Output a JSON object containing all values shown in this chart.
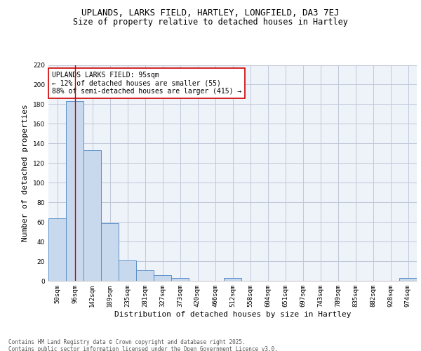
{
  "title1": "UPLANDS, LARKS FIELD, HARTLEY, LONGFIELD, DA3 7EJ",
  "title2": "Size of property relative to detached houses in Hartley",
  "xlabel": "Distribution of detached houses by size in Hartley",
  "ylabel": "Number of detached properties",
  "categories": [
    "50sqm",
    "96sqm",
    "142sqm",
    "189sqm",
    "235sqm",
    "281sqm",
    "327sqm",
    "373sqm",
    "420sqm",
    "466sqm",
    "512sqm",
    "558sqm",
    "604sqm",
    "651sqm",
    "697sqm",
    "743sqm",
    "789sqm",
    "835sqm",
    "882sqm",
    "928sqm",
    "974sqm"
  ],
  "values": [
    64,
    183,
    133,
    59,
    21,
    11,
    6,
    3,
    0,
    0,
    3,
    0,
    0,
    0,
    0,
    0,
    0,
    0,
    0,
    0,
    3
  ],
  "bar_color": "#c9d9ed",
  "bar_edge_color": "#5b8fc9",
  "grid_color": "#c0c8d8",
  "bg_color": "#eef2f9",
  "vline_x_index": 1,
  "vline_color": "#cc0000",
  "annotation_text": "UPLANDS LARKS FIELD: 95sqm\n← 12% of detached houses are smaller (55)\n88% of semi-detached houses are larger (415) →",
  "annotation_box_color": "#ffffff",
  "annotation_border_color": "#cc0000",
  "footer_text": "Contains HM Land Registry data © Crown copyright and database right 2025.\nContains public sector information licensed under the Open Government Licence v3.0.",
  "ylim": [
    0,
    220
  ],
  "yticks": [
    0,
    20,
    40,
    60,
    80,
    100,
    120,
    140,
    160,
    180,
    200,
    220
  ],
  "title_fontsize": 9,
  "subtitle_fontsize": 8.5,
  "tick_fontsize": 6.5,
  "ylabel_fontsize": 8,
  "xlabel_fontsize": 8,
  "annotation_fontsize": 7,
  "footer_fontsize": 5.5
}
